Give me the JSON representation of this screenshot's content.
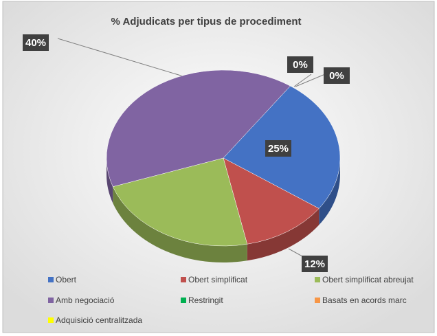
{
  "chart_data": {
    "type": "pie",
    "title": "% Adjudicats per tipus de procediment",
    "categories": [
      "Obert",
      "Obert simplificat",
      "Obert simplificat abreujat",
      "Amb negociació",
      "Restringit",
      "Basats en acords marc",
      "Adquisició centralitzada"
    ],
    "values": [
      25,
      12,
      23,
      40,
      0,
      0,
      0
    ],
    "value_labels": [
      "25%",
      "12%",
      null,
      "40%",
      "0%",
      "0%",
      null
    ],
    "colors": [
      "#4472c4",
      "#c0504d",
      "#9bbb59",
      "#8064a2",
      "#00b050",
      "#f79646",
      "#ffff00"
    ],
    "legend": "bottom"
  }
}
